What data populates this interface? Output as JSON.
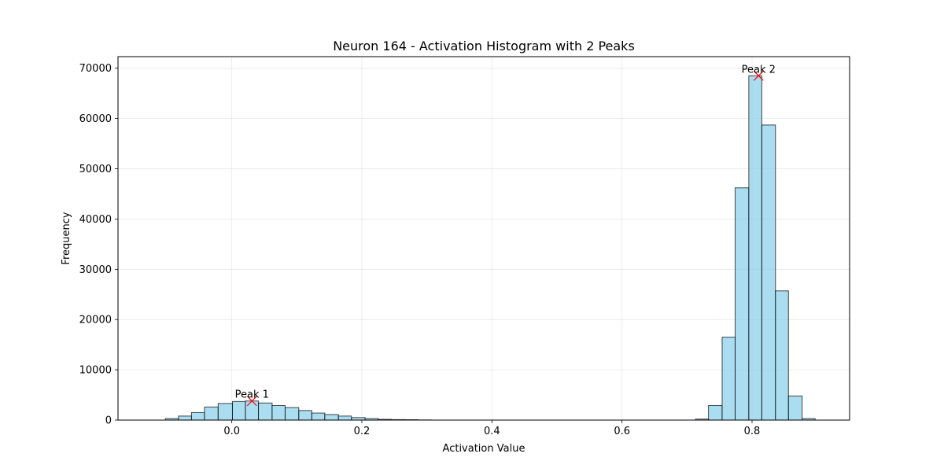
{
  "chart_data": {
    "type": "bar",
    "title": "Neuron 164 - Activation Histogram with 2 Peaks",
    "xlabel": "Activation Value",
    "ylabel": "Frequency",
    "xlim": [
      -0.175,
      0.95
    ],
    "ylim": [
      0,
      72300
    ],
    "x_ticks": [
      0.0,
      0.2,
      0.4,
      0.6,
      0.8
    ],
    "x_tick_labels": [
      "0.0",
      "0.2",
      "0.4",
      "0.6",
      "0.8"
    ],
    "y_ticks": [
      0,
      10000,
      20000,
      30000,
      40000,
      50000,
      60000,
      70000
    ],
    "y_tick_labels": [
      "0",
      "10000",
      "20000",
      "30000",
      "40000",
      "50000",
      "60000",
      "70000"
    ],
    "grid": true,
    "bar_color": "#87ceeb",
    "bar_edge_color": "#000000",
    "bins": [
      {
        "x0": -0.102,
        "x1": -0.082,
        "value": 300
      },
      {
        "x0": -0.082,
        "x1": -0.062,
        "value": 800
      },
      {
        "x0": -0.062,
        "x1": -0.042,
        "value": 1500
      },
      {
        "x0": -0.042,
        "x1": -0.021,
        "value": 2600
      },
      {
        "x0": -0.021,
        "x1": 0.001,
        "value": 3300
      },
      {
        "x0": 0.001,
        "x1": 0.021,
        "value": 3700
      },
      {
        "x0": 0.021,
        "x1": 0.041,
        "value": 3800
      },
      {
        "x0": 0.041,
        "x1": 0.062,
        "value": 3400
      },
      {
        "x0": 0.062,
        "x1": 0.082,
        "value": 2900
      },
      {
        "x0": 0.082,
        "x1": 0.103,
        "value": 2500
      },
      {
        "x0": 0.103,
        "x1": 0.123,
        "value": 1900
      },
      {
        "x0": 0.123,
        "x1": 0.143,
        "value": 1400
      },
      {
        "x0": 0.143,
        "x1": 0.164,
        "value": 1100
      },
      {
        "x0": 0.164,
        "x1": 0.184,
        "value": 800
      },
      {
        "x0": 0.184,
        "x1": 0.205,
        "value": 500
      },
      {
        "x0": 0.205,
        "x1": 0.225,
        "value": 300
      },
      {
        "x0": 0.225,
        "x1": 0.245,
        "value": 150
      },
      {
        "x0": 0.245,
        "x1": 0.266,
        "value": 100
      },
      {
        "x0": 0.266,
        "x1": 0.286,
        "value": 80
      },
      {
        "x0": 0.286,
        "x1": 0.307,
        "value": 30
      },
      {
        "x0": 0.307,
        "x1": 0.713,
        "value": 0
      },
      {
        "x0": 0.713,
        "x1": 0.733,
        "value": 200
      },
      {
        "x0": 0.733,
        "x1": 0.754,
        "value": 2900
      },
      {
        "x0": 0.754,
        "x1": 0.774,
        "value": 16500
      },
      {
        "x0": 0.774,
        "x1": 0.795,
        "value": 46200
      },
      {
        "x0": 0.795,
        "x1": 0.815,
        "value": 68500
      },
      {
        "x0": 0.815,
        "x1": 0.836,
        "value": 58700
      },
      {
        "x0": 0.836,
        "x1": 0.856,
        "value": 25700
      },
      {
        "x0": 0.856,
        "x1": 0.877,
        "value": 4800
      },
      {
        "x0": 0.877,
        "x1": 0.897,
        "value": 300
      }
    ],
    "peaks": [
      {
        "label": "Peak 1",
        "x": 0.031,
        "y": 3800
      },
      {
        "label": "Peak 2",
        "x": 0.81,
        "y": 68500
      }
    ],
    "peak_marker_color": "#ff0000"
  }
}
